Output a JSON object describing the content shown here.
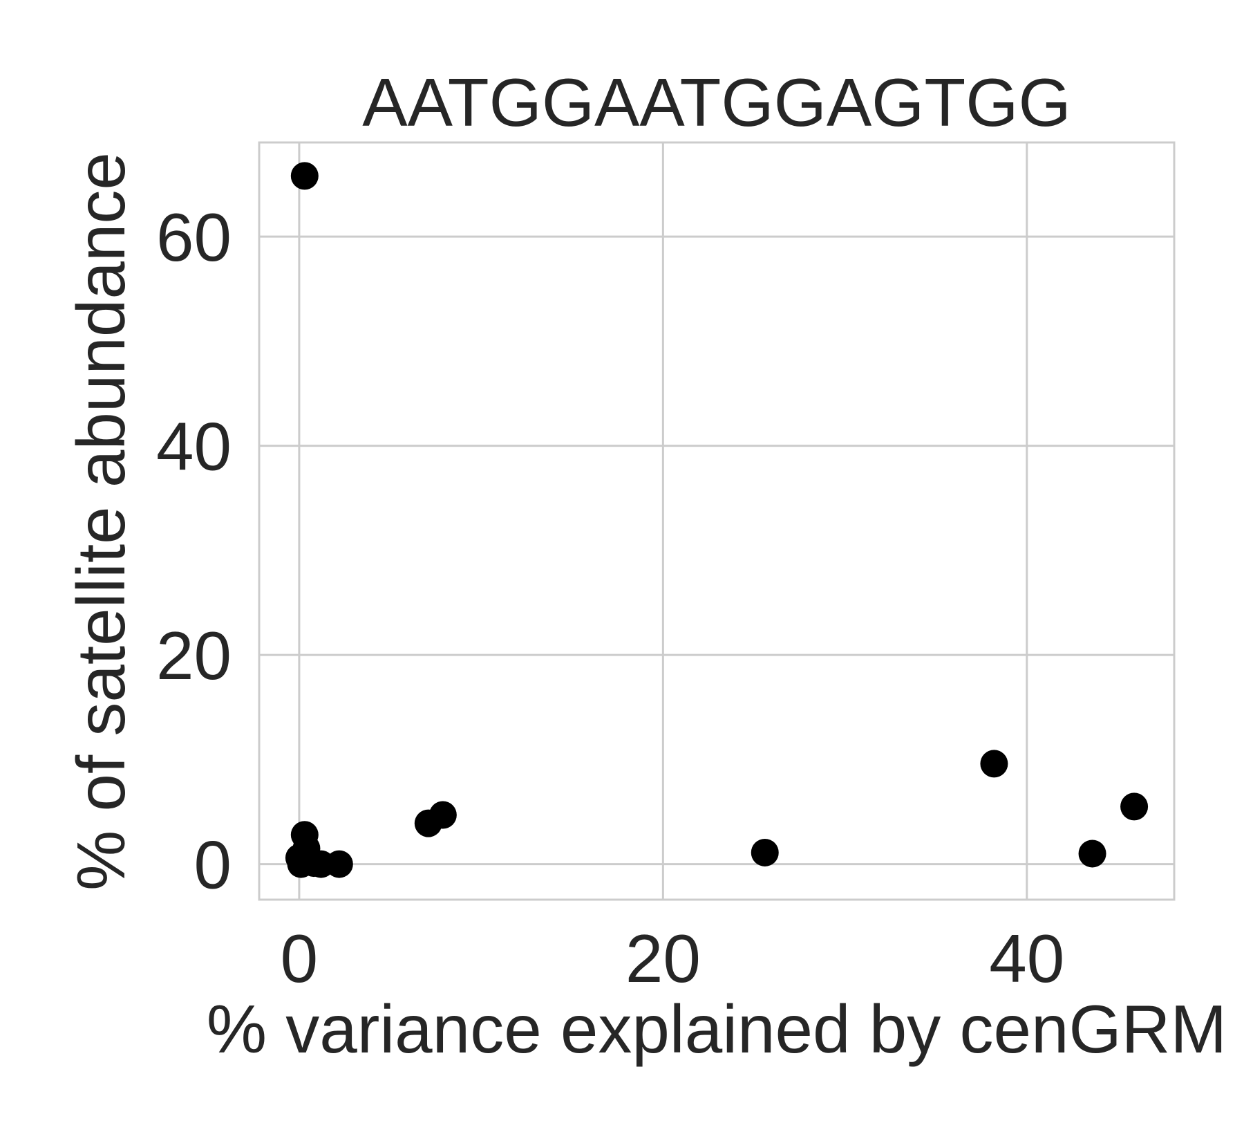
{
  "chart_data": {
    "type": "scatter",
    "title": "AATGGAATGGAGTGG",
    "xlabel": "% variance explained by cenGRM",
    "ylabel": "% of satellite abundance",
    "xlim": [
      -2.2,
      48.1
    ],
    "ylim": [
      -3.4,
      69.0
    ],
    "xticks": [
      0,
      20,
      40
    ],
    "xtick_labels": [
      "0",
      "20",
      "40"
    ],
    "yticks": [
      0,
      20,
      40,
      60
    ],
    "ytick_labels": [
      "0",
      "20",
      "40",
      "60"
    ],
    "grid": true,
    "legend": "none",
    "marker_color": "#000000",
    "grid_color": "#cccccc",
    "text_color": "#262626",
    "series": [
      {
        "x": [
          0.3,
          0.3,
          0.4,
          0.0,
          0.2,
          0.1,
          0.8,
          1.2,
          2.2,
          7.1,
          7.9,
          25.6,
          38.2,
          43.6,
          45.9
        ],
        "y": [
          65.8,
          2.8,
          1.5,
          0.6,
          0.3,
          0.0,
          0.1,
          0.0,
          0.0,
          3.9,
          4.7,
          1.1,
          9.6,
          1.0,
          5.5
        ]
      }
    ]
  }
}
